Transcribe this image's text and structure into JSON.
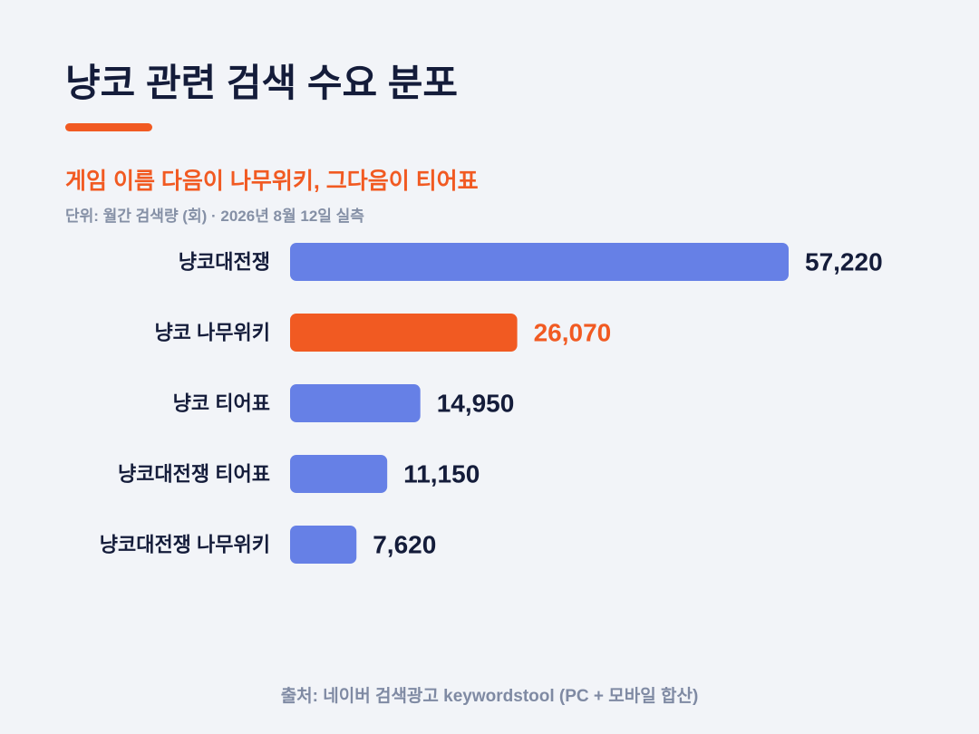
{
  "header": {
    "title": "냥코 관련 검색 수요 분포",
    "subtitle": "게임 이름 다음이 나무위키, 그다음이 티어표",
    "unit_note": "단위: 월간 검색량 (회) · 2026년 8월 12일 실측"
  },
  "footer": {
    "source": "출처: 네이버 검색광고 keywordstool (PC + 모바일 합산)"
  },
  "colors": {
    "accent": "#f15a22",
    "bar": "#6680e6",
    "text_dark": "#141c3a",
    "text_muted": "#7f8aa3",
    "background": "#f2f4f8"
  },
  "chart_data": {
    "type": "bar",
    "orientation": "horizontal",
    "title": "냥코 관련 검색 수요 분포",
    "subtitle": "게임 이름 다음이 나무위키, 그다음이 티어표",
    "categories": [
      "냥코대전쟁",
      "냥코 나무위키",
      "냥코 티어표",
      "냥코대전쟁 티어표",
      "냥코대전쟁 나무위키"
    ],
    "values": [
      57220,
      26070,
      14950,
      11150,
      7620
    ],
    "value_labels": [
      "57,220",
      "26,070",
      "14,950",
      "11,150",
      "7,620"
    ],
    "highlight_index": 1,
    "xlim": [
      0,
      57220
    ],
    "grid": false,
    "legend": "none"
  }
}
